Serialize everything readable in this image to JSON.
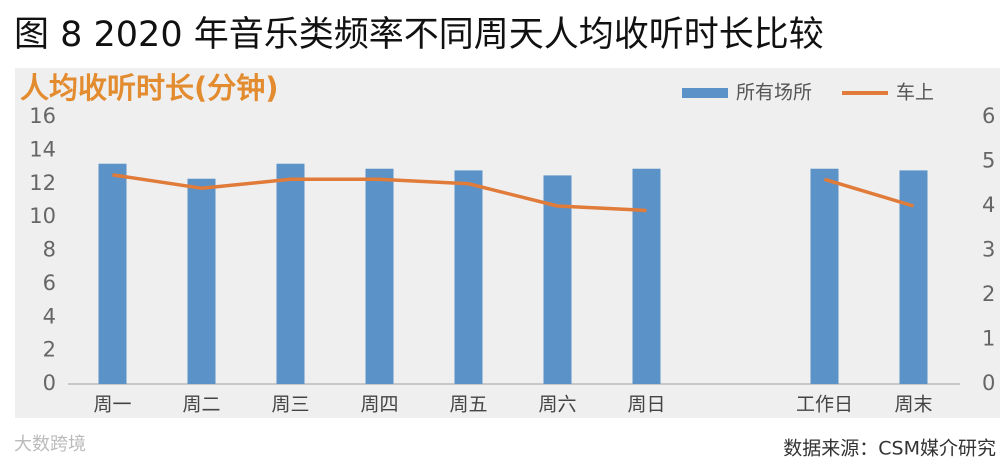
{
  "chart_data": {
    "type": "bar-line",
    "title": "图 8  2020 年音乐类频率不同周天人均收听时长比较",
    "subtitle": "人均收听时长(分钟)",
    "categories": [
      "周一",
      "周二",
      "周三",
      "周四",
      "周五",
      "周六",
      "周日",
      null,
      "工作日",
      "周末"
    ],
    "series": [
      {
        "name": "所有场所",
        "color": "#5b93c9",
        "kind": "bar",
        "values": [
          13.2,
          12.3,
          13.2,
          12.9,
          12.8,
          12.5,
          12.9,
          null,
          12.9,
          12.8
        ]
      },
      {
        "name": "车上",
        "color": "#e07b39",
        "kind": "line",
        "axis": "y2",
        "values": [
          4.7,
          4.4,
          4.6,
          4.6,
          4.5,
          4.0,
          3.9,
          null,
          4.6,
          4.0
        ]
      }
    ],
    "ylim": [
      0,
      16
    ],
    "yticks": [
      0,
      2,
      4,
      6,
      8,
      10,
      12,
      14,
      16
    ],
    "y2lim": [
      0,
      6
    ],
    "y2ticks": [
      0,
      1,
      2,
      3,
      4,
      5,
      6
    ],
    "legend": "top-right",
    "source": "数据来源：CSM媒介研究",
    "watermark": "大数跨境"
  }
}
